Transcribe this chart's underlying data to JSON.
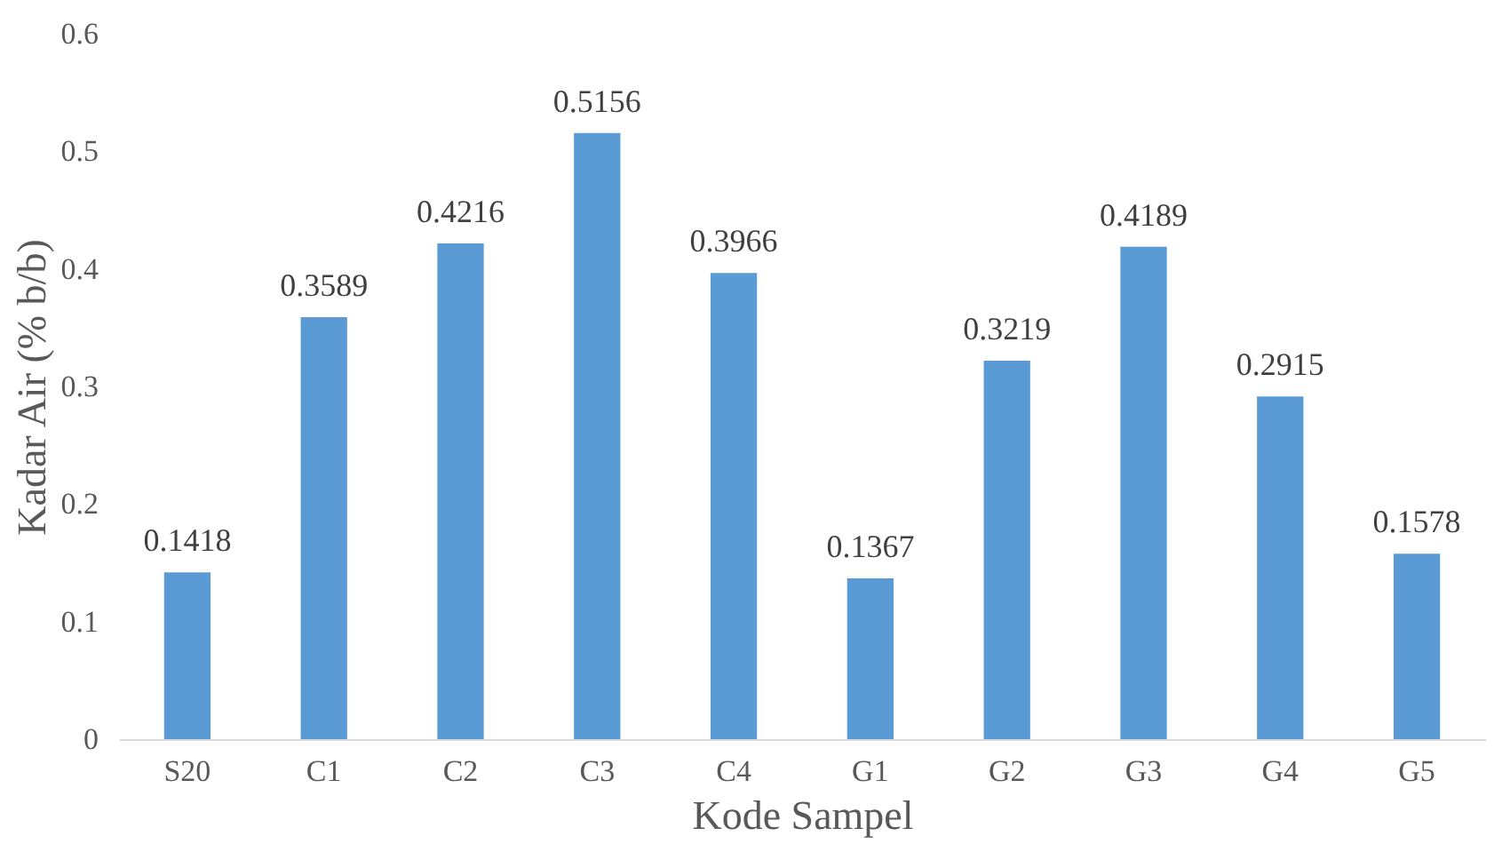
{
  "chart_data": {
    "type": "bar",
    "xlabel": "Kode Sampel",
    "ylabel": "Kadar Air (% b/b)",
    "categories": [
      "S20",
      "C1",
      "C2",
      "C3",
      "C4",
      "G1",
      "G2",
      "G3",
      "G4",
      "G5"
    ],
    "values": [
      0.1418,
      0.3589,
      0.4216,
      0.5156,
      0.3966,
      0.1367,
      0.3219,
      0.4189,
      0.2915,
      0.1578
    ],
    "color": "#5b9bd5",
    "ylim": [
      0,
      0.6
    ],
    "yticks": [
      0,
      0.1,
      0.2,
      0.3,
      0.4,
      0.5,
      0.6
    ],
    "grid": false,
    "data_labels": true
  }
}
